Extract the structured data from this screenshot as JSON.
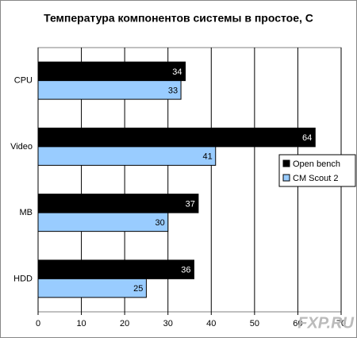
{
  "chart_data": {
    "type": "hbar",
    "title": "Температура компонентов системы в простое, C",
    "categories": [
      "CPU",
      "Video",
      "MB",
      "HDD"
    ],
    "series": [
      {
        "name": "Open bench",
        "color": "#000000",
        "values": [
          34,
          64,
          37,
          36
        ]
      },
      {
        "name": "CM Scout 2",
        "color": "#99ccff",
        "values": [
          33,
          41,
          30,
          25
        ]
      }
    ],
    "xlim": [
      0,
      70
    ],
    "xticks": [
      0,
      10,
      20,
      30,
      40,
      50,
      60,
      70
    ],
    "grid": true,
    "legend": "right",
    "watermark": "FXP.RU"
  }
}
